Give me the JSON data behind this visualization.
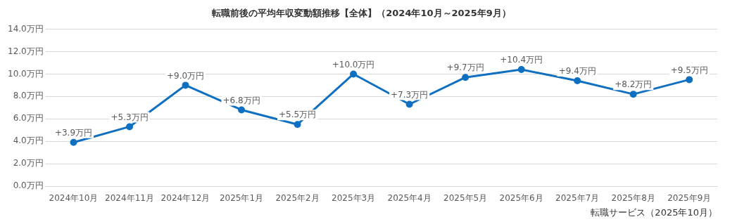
{
  "chart_data": {
    "type": "line",
    "title": "転職前後の平均年収変動額推移【全体】（2024年10月～2025年9月）",
    "categories": [
      "2024年10月",
      "2024年11月",
      "2024年12月",
      "2025年1月",
      "2025年2月",
      "2025年3月",
      "2025年4月",
      "2025年5月",
      "2025年6月",
      "2025年7月",
      "2025年8月",
      "2025年9月"
    ],
    "series": [
      {
        "color": "#0f6fc0",
        "values": [
          3.9,
          5.3,
          9.0,
          6.8,
          5.5,
          10.0,
          7.3,
          9.7,
          10.4,
          9.4,
          8.2,
          9.5
        ],
        "value_labels": [
          "+3.9万円",
          "+5.3万円",
          "+9.0万円",
          "+6.8万円",
          "+5.5万円",
          "+10.0万円",
          "+7.3万円",
          "+9.7万円",
          "+10.4万円",
          "+9.4万円",
          "+8.2万円",
          "+9.5万円"
        ]
      }
    ],
    "ylim": [
      0,
      14
    ],
    "yticks": [
      {
        "value": 0,
        "label": "0.0万円"
      },
      {
        "value": 2,
        "label": "2.0万円"
      },
      {
        "value": 4,
        "label": "4.0万円"
      },
      {
        "value": 6,
        "label": "6.0万円"
      },
      {
        "value": 8,
        "label": "8.0万円"
      },
      {
        "value": 10,
        "label": "10.0万円"
      },
      {
        "value": 12,
        "label": "12.0万円"
      },
      {
        "value": 14,
        "label": "14.0万円"
      }
    ],
    "grid": "y",
    "marker": "circle",
    "line_style": "solid",
    "annotations": [
      "転職サービス（2025年10月）"
    ]
  }
}
